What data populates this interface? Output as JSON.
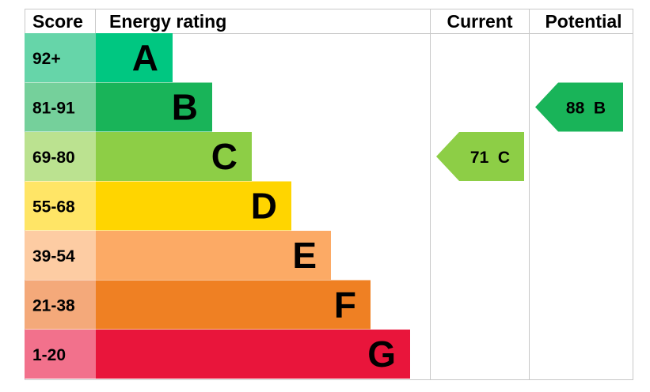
{
  "chart_data": {
    "type": "bar",
    "headers": {
      "score": "Score",
      "rating": "Energy rating",
      "current": "Current",
      "potential": "Potential"
    },
    "bands": [
      {
        "score": "92+",
        "letter": "A",
        "min": 92,
        "color": "#00c781",
        "score_bg": "#66d5a9"
      },
      {
        "score": "81-91",
        "letter": "B",
        "min": 81,
        "color": "#19b459",
        "score_bg": "#75d09b"
      },
      {
        "score": "69-80",
        "letter": "C",
        "min": 69,
        "color": "#8dce46",
        "score_bg": "#bbe290"
      },
      {
        "score": "55-68",
        "letter": "D",
        "min": 55,
        "color": "#ffd500",
        "score_bg": "#ffe566"
      },
      {
        "score": "39-54",
        "letter": "E",
        "min": 39,
        "color": "#fcaa65",
        "score_bg": "#fdcca3"
      },
      {
        "score": "21-38",
        "letter": "F",
        "min": 21,
        "color": "#ef8023",
        "score_bg": "#f4a97a"
      },
      {
        "score": "1-20",
        "letter": "G",
        "min": 1,
        "color": "#e9153b",
        "score_bg": "#f2718c"
      }
    ],
    "current": {
      "value": 71,
      "letter": "C",
      "label": "71 C",
      "color": "#8dce46"
    },
    "potential": {
      "value": 88,
      "letter": "B",
      "label": "88 B",
      "color": "#19b459"
    }
  }
}
